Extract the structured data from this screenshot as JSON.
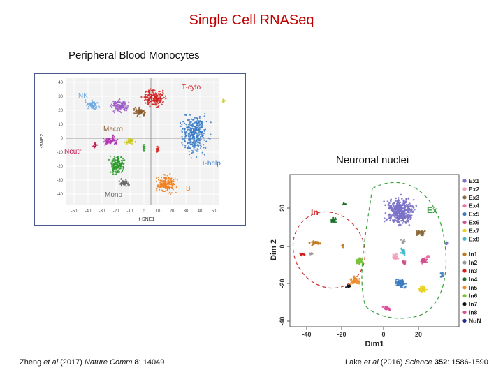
{
  "title": "Single Cell RNASeq",
  "left_panel": {
    "heading": "Peripheral Blood Monocytes",
    "plot": {
      "ylabel": "t-SNE2",
      "xlabel": "t-SNE1",
      "xticks": [
        "-50",
        "-40",
        "-30",
        "-20",
        "-10",
        "0",
        "10",
        "20",
        "30",
        "40",
        "50"
      ],
      "yticks": [
        "40",
        "30",
        "20",
        "10",
        "0",
        "-10",
        "-20",
        "-30",
        "-40"
      ],
      "clusters": [
        {
          "label": "NK",
          "color": "#6ca8e0"
        },
        {
          "label": "T-cyto",
          "color": "#d42020"
        },
        {
          "label": "Macro",
          "color": "#8b5a2b"
        },
        {
          "label": "Neutr",
          "color": "#c0104a"
        },
        {
          "label": "T-help",
          "color": "#3a7cc8"
        },
        {
          "label": "B",
          "color": "#f08020"
        },
        {
          "label": "Mono",
          "color": "#666666"
        }
      ]
    },
    "citation": {
      "authors": "Zheng ",
      "etal": "et al",
      "year": " (2017) ",
      "journal": "Nature Comm",
      "volume": " 8",
      "pages": ": 14049"
    }
  },
  "right_panel": {
    "heading": "Neuronal nuclei",
    "plot": {
      "ylabel": "Dim 2",
      "xlabel": "Dim1",
      "xticks": [
        "-40",
        "-20",
        "0",
        "20"
      ],
      "yticks": [
        "20",
        "0",
        "-20",
        "-40"
      ],
      "group_in": "In",
      "group_ex": "Ex",
      "legend": [
        {
          "label": "Ex1",
          "color": "#7b72c8"
        },
        {
          "label": "Ex2",
          "color": "#f4a0b8"
        },
        {
          "label": "Ex3",
          "color": "#8b6a3a"
        },
        {
          "label": "Ex4",
          "color": "#ee6fa8"
        },
        {
          "label": "Ex5",
          "color": "#3c7cc0"
        },
        {
          "label": "Ex6",
          "color": "#d05090"
        },
        {
          "label": "Ex7",
          "color": "#e8d020"
        },
        {
          "label": "Ex8",
          "color": "#40b8c8"
        },
        {
          "label": "In1",
          "color": "#c07a20"
        },
        {
          "label": "In2",
          "color": "#999999"
        },
        {
          "label": "In3",
          "color": "#d22020"
        },
        {
          "label": "In4",
          "color": "#1e6e2a"
        },
        {
          "label": "In5",
          "color": "#f08c28"
        },
        {
          "label": "In6",
          "color": "#7ac23c"
        },
        {
          "label": "In7",
          "color": "#111111"
        },
        {
          "label": "In8",
          "color": "#d84f9a"
        },
        {
          "label": "NoN",
          "color": "#1e2e8e"
        }
      ]
    },
    "citation": {
      "authors": "Lake ",
      "etal": "et al",
      "year": " (2016) ",
      "journal": "Science",
      "volume": " 352",
      "pages": ": 1586-1590"
    }
  }
}
